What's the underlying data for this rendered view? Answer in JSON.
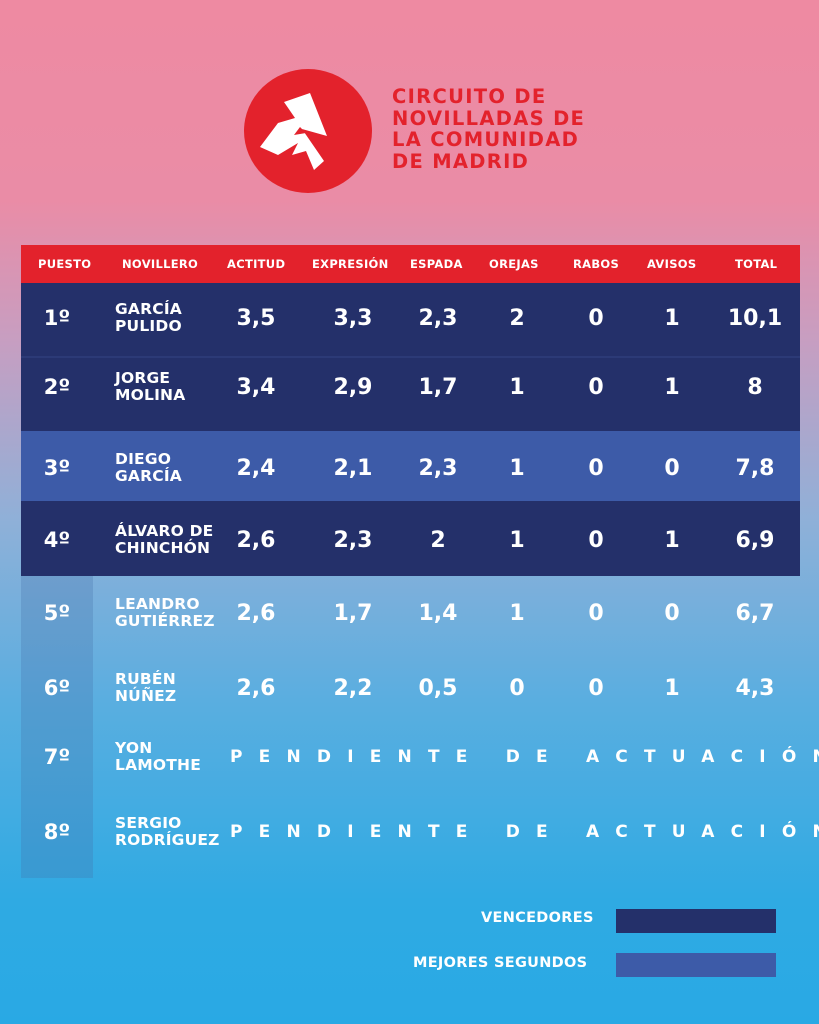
{
  "brand": {
    "title_lines": [
      "CIRCUITO DE",
      "NOVILLADAS DE",
      "LA COMUNIDAD",
      "DE MADRID"
    ],
    "accent_color": "#e3222c",
    "logo_icon": "circuit-s-logo-icon"
  },
  "table": {
    "headers": [
      "PUESTO",
      "NOVILLERO",
      "ACTITUD",
      "EXPRESIÓN",
      "ESPADA",
      "OREJAS",
      "RABOS",
      "AVISOS",
      "TOTAL"
    ],
    "rows": [
      {
        "puesto": "1º",
        "novillero": "GARCÍA\nPULIDO",
        "actitud": "3,5",
        "expresion": "3,3",
        "espada": "2,3",
        "orejas": "2",
        "rabos": "0",
        "avisos": "1",
        "total": "10,1",
        "group": "vencedores"
      },
      {
        "puesto": "2º",
        "novillero": "JORGE\nMOLINA",
        "actitud": "3,4",
        "expresion": "2,9",
        "espada": "1,7",
        "orejas": "1",
        "rabos": "0",
        "avisos": "1",
        "total": "8",
        "group": "vencedores"
      },
      {
        "puesto": "3º",
        "novillero": "DIEGO\nGARCÍA",
        "actitud": "2,4",
        "expresion": "2,1",
        "espada": "2,3",
        "orejas": "1",
        "rabos": "0",
        "avisos": "0",
        "total": "7,8",
        "group": "mejores_segundos"
      },
      {
        "puesto": "4º",
        "novillero": "ÁLVARO DE\nCHINCHÓN",
        "actitud": "2,6",
        "expresion": "2,3",
        "espada": "2",
        "orejas": "1",
        "rabos": "0",
        "avisos": "1",
        "total": "6,9",
        "group": "vencedores"
      },
      {
        "puesto": "5º",
        "novillero": "LEANDRO\nGUTIÉRREZ",
        "actitud": "2,6",
        "expresion": "1,7",
        "espada": "1,4",
        "orejas": "1",
        "rabos": "0",
        "avisos": "0",
        "total": "6,7",
        "group": ""
      },
      {
        "puesto": "6º",
        "novillero": "RUBÉN\nNÚÑEZ",
        "actitud": "2,6",
        "expresion": "2,2",
        "espada": "0,5",
        "orejas": "0",
        "rabos": "0",
        "avisos": "1",
        "total": "4,3",
        "group": ""
      },
      {
        "puesto": "7º",
        "novillero": "YON\nLAMOTHE",
        "pending": "PENDIENTE DE ACTUACIÓN",
        "group": ""
      },
      {
        "puesto": "8º",
        "novillero": "SERGIO\nRODRÍGUEZ",
        "pending": "PENDIENTE DE ACTUACIÓN",
        "group": ""
      }
    ]
  },
  "legend": {
    "items": [
      {
        "label": "VENCEDORES",
        "color": "#24306a"
      },
      {
        "label": "MEJORES SEGUNDOS",
        "color": "#3d5ba8"
      }
    ]
  }
}
